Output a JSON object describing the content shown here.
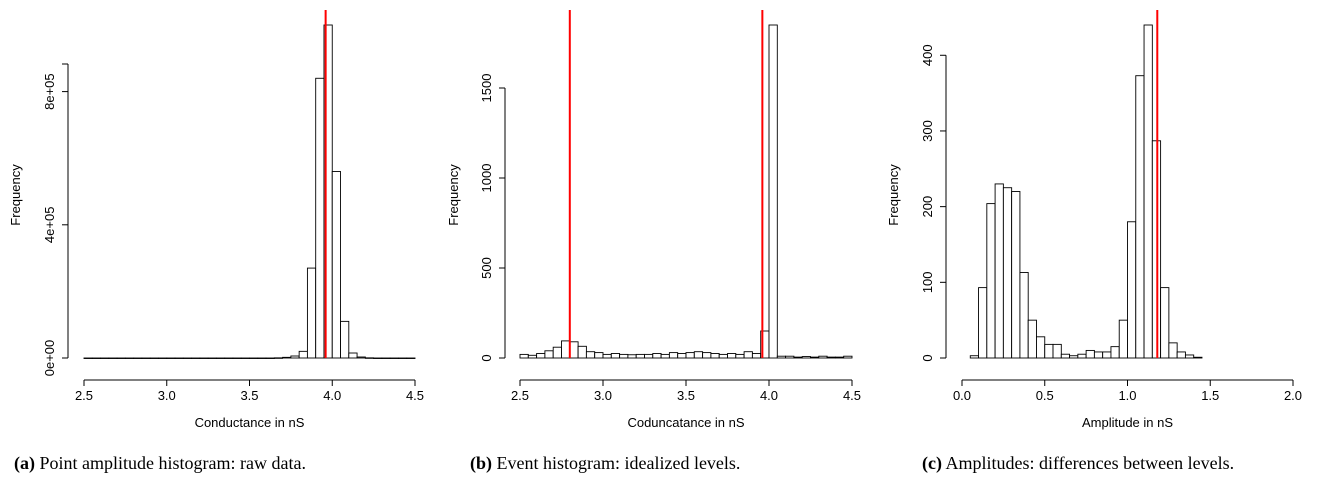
{
  "chart_data": [
    {
      "type": "bar",
      "title": "",
      "xlabel": "Conductance in nS",
      "ylabel": "Frequency",
      "xlim": [
        2.5,
        4.5
      ],
      "ylim": [
        0,
        1000000
      ],
      "xticks": [
        2.5,
        3.0,
        3.5,
        4.0,
        4.5
      ],
      "xtick_labels": [
        "2.5",
        "3.0",
        "3.5",
        "4.0",
        "4.5"
      ],
      "yticks": [
        0,
        400000,
        800000
      ],
      "ytick_labels": [
        "0e+00",
        "4e+05",
        "8e+05"
      ],
      "bin_start": 2.5,
      "bin_width": 0.05,
      "values": [
        0,
        0,
        0,
        0,
        0,
        0,
        0,
        0,
        0,
        0,
        0,
        0,
        0,
        0,
        0,
        0,
        0,
        0,
        0,
        0,
        0,
        0,
        0,
        500,
        2000,
        6000,
        20000,
        270000,
        840000,
        1000000,
        560000,
        110000,
        15000,
        3000,
        500,
        0,
        0,
        0,
        0,
        0
      ],
      "grid": false,
      "reference_lines": [
        {
          "axis": "x",
          "value": 3.96,
          "color": "#ff0000"
        }
      ],
      "caption_label": "(a)",
      "caption_text": "Point amplitude histogram: raw data."
    },
    {
      "type": "bar",
      "title": "",
      "xlabel": "Coduncatance in nS",
      "ylabel": "Frequency",
      "xlim": [
        2.5,
        4.5
      ],
      "ylim": [
        0,
        1850
      ],
      "xticks": [
        2.5,
        3.0,
        3.5,
        4.0,
        4.5
      ],
      "xtick_labels": [
        "2.5",
        "3.0",
        "3.5",
        "4.0",
        "4.5"
      ],
      "yticks": [
        0,
        500,
        1000,
        1500
      ],
      "ytick_labels": [
        "0",
        "500",
        "1000",
        "1500"
      ],
      "bin_start": 2.5,
      "bin_width": 0.05,
      "values": [
        20,
        15,
        25,
        40,
        60,
        95,
        90,
        65,
        35,
        30,
        20,
        25,
        20,
        18,
        20,
        20,
        25,
        20,
        30,
        25,
        30,
        35,
        30,
        25,
        20,
        25,
        20,
        35,
        25,
        150,
        1850,
        10,
        10,
        5,
        8,
        5,
        10,
        5,
        5,
        10
      ],
      "grid": false,
      "reference_lines": [
        {
          "axis": "x",
          "value": 2.8,
          "color": "#ff0000"
        },
        {
          "axis": "x",
          "value": 3.96,
          "color": "#ff0000"
        }
      ],
      "caption_label": "(b)",
      "caption_text": "Event histogram: idealized levels."
    },
    {
      "type": "bar",
      "title": "",
      "xlabel": "Amplitude in nS",
      "ylabel": "Frequency",
      "xlim": [
        0,
        2.0
      ],
      "ylim": [
        0,
        440
      ],
      "xticks": [
        0.0,
        0.5,
        1.0,
        1.5,
        2.0
      ],
      "xtick_labels": [
        "0.0",
        "0.5",
        "1.0",
        "1.5",
        "2.0"
      ],
      "yticks": [
        0,
        100,
        200,
        300,
        400
      ],
      "ytick_labels": [
        "0",
        "100",
        "200",
        "300",
        "400"
      ],
      "bin_start": 0.05,
      "bin_width": 0.05,
      "values": [
        3,
        93,
        204,
        230,
        225,
        220,
        113,
        50,
        28,
        18,
        18,
        5,
        3,
        5,
        10,
        8,
        8,
        15,
        50,
        180,
        373,
        440,
        287,
        93,
        20,
        8,
        4,
        1
      ],
      "grid": false,
      "reference_lines": [
        {
          "axis": "x",
          "value": 1.18,
          "color": "#ff0000"
        }
      ],
      "caption_label": "(c)",
      "caption_text": "Amplitudes: differences between levels."
    }
  ]
}
